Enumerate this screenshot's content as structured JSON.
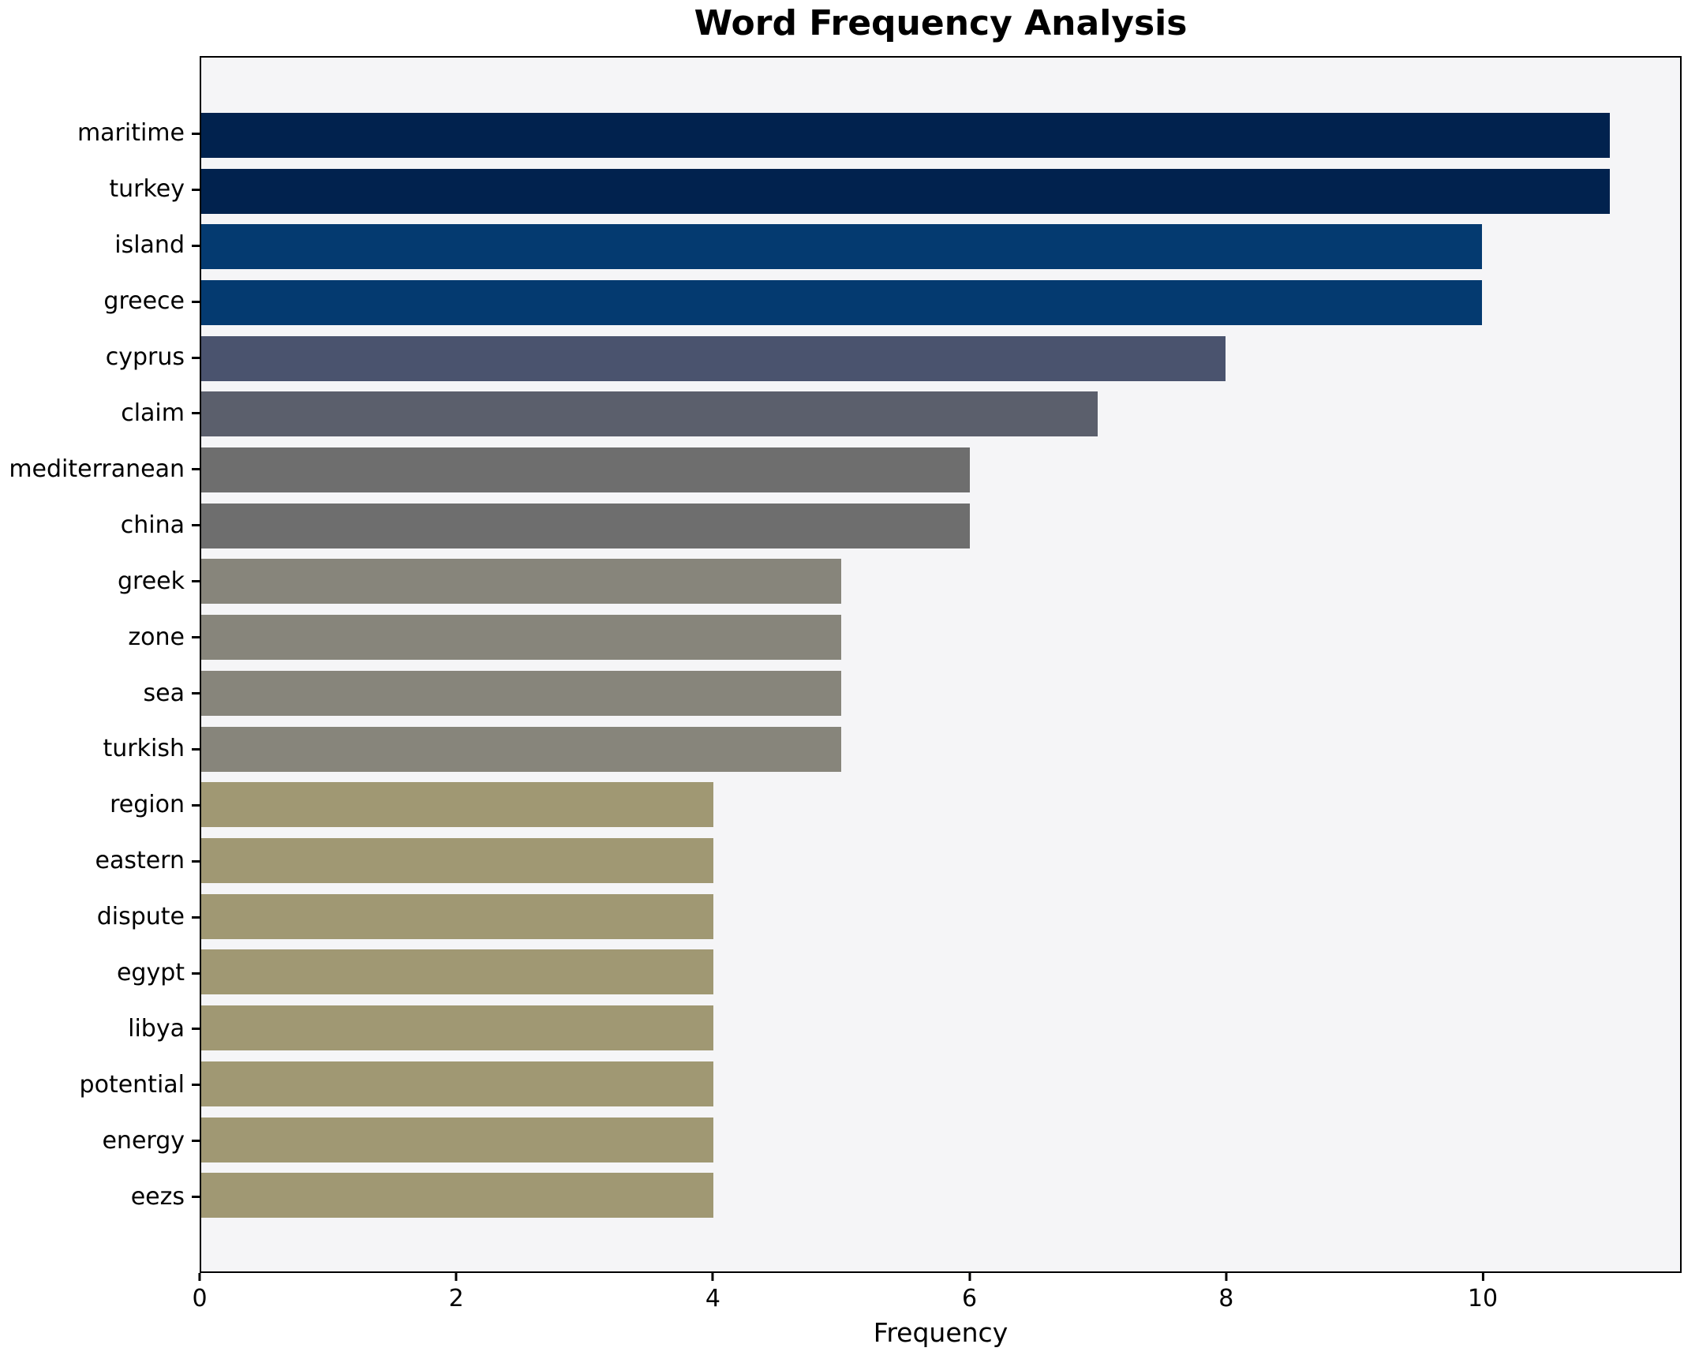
{
  "chart_data": {
    "type": "bar",
    "orientation": "horizontal",
    "title": "Word Frequency Analysis",
    "xlabel": "Frequency",
    "ylabel": "",
    "xlim": [
      0,
      11.55
    ],
    "x_ticks": [
      0,
      2,
      4,
      6,
      8,
      10
    ],
    "grid": false,
    "legend": null,
    "plot_background": "#f5f5f7",
    "spine_color": "#000000",
    "categories": [
      "maritime",
      "turkey",
      "island",
      "greece",
      "cyprus",
      "claim",
      "mediterranean",
      "china",
      "greek",
      "zone",
      "sea",
      "turkish",
      "region",
      "eastern",
      "dispute",
      "egypt",
      "libya",
      "potential",
      "energy",
      "eezs"
    ],
    "values": [
      11,
      11,
      10,
      10,
      8,
      7,
      6,
      6,
      5,
      5,
      5,
      5,
      4,
      4,
      4,
      4,
      4,
      4,
      4,
      4
    ],
    "bar_colors": [
      "#01224e",
      "#01224e",
      "#043a70",
      "#043a70",
      "#4a536e",
      "#5b5f6c",
      "#6e6e6e",
      "#6e6e6e",
      "#87857b",
      "#87857b",
      "#87857b",
      "#87857b",
      "#a09873",
      "#a09873",
      "#a09873",
      "#a09873",
      "#a09873",
      "#a09873",
      "#a09873",
      "#a09873"
    ]
  }
}
